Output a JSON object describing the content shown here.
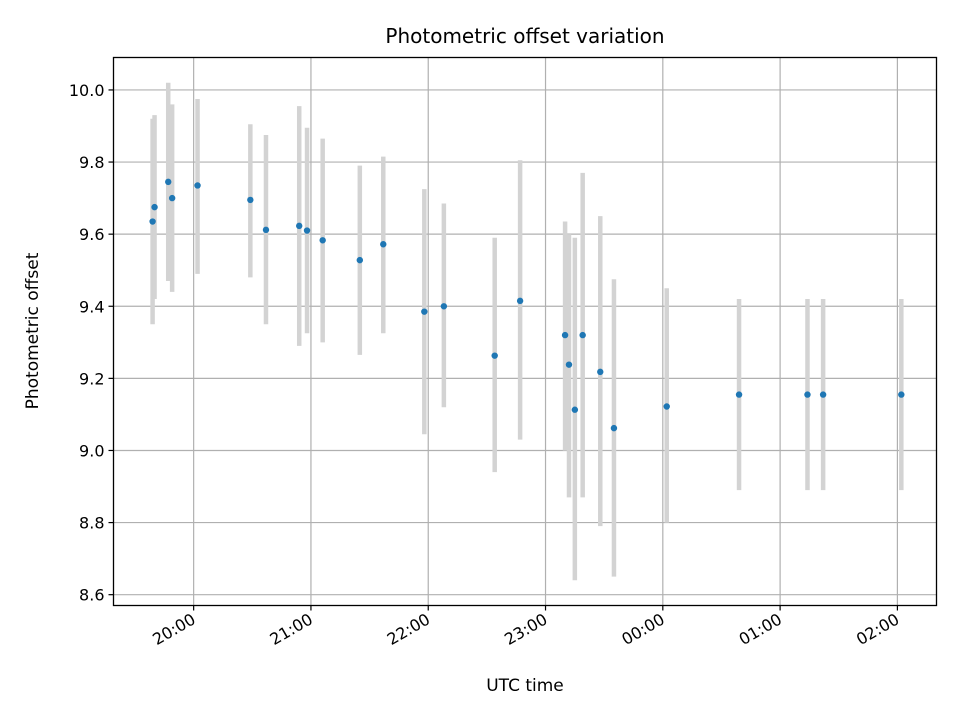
{
  "chart_data": {
    "type": "scatter",
    "title": "Photometric offset variation",
    "xlabel": "UTC time",
    "ylabel": "Photometric offset",
    "grid": true,
    "x_unit": "UTC clock time (HH:MM), night crossing midnight",
    "x_ticks": [
      "20:00",
      "21:00",
      "22:00",
      "23:00",
      "00:00",
      "01:00",
      "02:00"
    ],
    "xlim": [
      "19:19",
      "02:20"
    ],
    "y_ticks": [
      "8.6",
      "8.8",
      "9.0",
      "9.2",
      "9.4",
      "9.6",
      "9.8",
      "10.0"
    ],
    "ylim": [
      8.57,
      10.09
    ],
    "colors": {
      "points": "#1f77b4",
      "errorbars": "#d3d3d3",
      "grid": "#b0b0b0"
    },
    "points": [
      {
        "x": "19:39",
        "y": 9.635,
        "ylow": 9.35,
        "yhigh": 9.92
      },
      {
        "x": "19:40",
        "y": 9.675,
        "ylow": 9.42,
        "yhigh": 9.93
      },
      {
        "x": "19:47",
        "y": 9.745,
        "ylow": 9.47,
        "yhigh": 10.02
      },
      {
        "x": "19:49",
        "y": 9.7,
        "ylow": 9.44,
        "yhigh": 9.96
      },
      {
        "x": "20:02",
        "y": 9.735,
        "ylow": 9.49,
        "yhigh": 9.975
      },
      {
        "x": "20:29",
        "y": 9.695,
        "ylow": 9.48,
        "yhigh": 9.905
      },
      {
        "x": "20:37",
        "y": 9.612,
        "ylow": 9.35,
        "yhigh": 9.875
      },
      {
        "x": "20:54",
        "y": 9.623,
        "ylow": 9.29,
        "yhigh": 9.955
      },
      {
        "x": "20:58",
        "y": 9.61,
        "ylow": 9.325,
        "yhigh": 9.895
      },
      {
        "x": "21:06",
        "y": 9.583,
        "ylow": 9.3,
        "yhigh": 9.865
      },
      {
        "x": "21:25",
        "y": 9.528,
        "ylow": 9.265,
        "yhigh": 9.79
      },
      {
        "x": "21:37",
        "y": 9.572,
        "ylow": 9.325,
        "yhigh": 9.815
      },
      {
        "x": "21:58",
        "y": 9.385,
        "ylow": 9.045,
        "yhigh": 9.725
      },
      {
        "x": "22:08",
        "y": 9.4,
        "ylow": 9.12,
        "yhigh": 9.685
      },
      {
        "x": "22:34",
        "y": 9.263,
        "ylow": 8.94,
        "yhigh": 9.59
      },
      {
        "x": "22:47",
        "y": 9.415,
        "ylow": 9.03,
        "yhigh": 9.805
      },
      {
        "x": "23:10",
        "y": 9.32,
        "ylow": 9.0,
        "yhigh": 9.635
      },
      {
        "x": "23:12",
        "y": 9.238,
        "ylow": 8.87,
        "yhigh": 9.6
      },
      {
        "x": "23:15",
        "y": 9.113,
        "ylow": 8.64,
        "yhigh": 9.59
      },
      {
        "x": "23:19",
        "y": 9.32,
        "ylow": 8.87,
        "yhigh": 9.77
      },
      {
        "x": "23:28",
        "y": 9.218,
        "ylow": 8.79,
        "yhigh": 9.65
      },
      {
        "x": "23:35",
        "y": 9.062,
        "ylow": 8.65,
        "yhigh": 9.475
      },
      {
        "x": "00:02",
        "y": 9.122,
        "ylow": 8.8,
        "yhigh": 9.45
      },
      {
        "x": "00:39",
        "y": 9.155,
        "ylow": 8.89,
        "yhigh": 9.42
      },
      {
        "x": "01:14",
        "y": 9.155,
        "ylow": 8.89,
        "yhigh": 9.42
      },
      {
        "x": "01:22",
        "y": 9.155,
        "ylow": 8.89,
        "yhigh": 9.42
      },
      {
        "x": "02:02",
        "y": 9.155,
        "ylow": 8.89,
        "yhigh": 9.42
      }
    ]
  }
}
